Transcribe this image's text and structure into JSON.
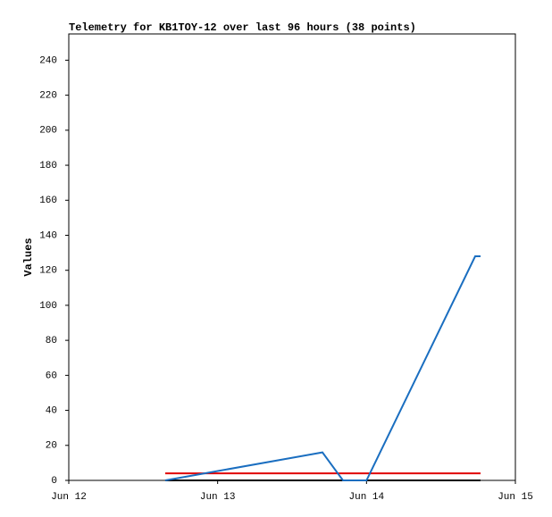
{
  "chart_data": {
    "type": "line",
    "title": "Telemetry for KB1TOY-12 over last 96 hours (38 points)",
    "ylabel": "Values",
    "xlim": [
      0,
      3
    ],
    "xticks": [
      {
        "value": 0,
        "label": "Jun 12"
      },
      {
        "value": 1,
        "label": "Jun 13"
      },
      {
        "value": 2,
        "label": "Jun 14"
      },
      {
        "value": 3,
        "label": "Jun 15"
      }
    ],
    "ylim": [
      0,
      255
    ],
    "yticks": [
      0,
      20,
      40,
      60,
      80,
      100,
      120,
      140,
      160,
      180,
      200,
      220,
      240
    ],
    "series": [
      {
        "color": "#000000",
        "x": [
          0.648,
          2.766
        ],
        "values": [
          0,
          0
        ]
      },
      {
        "color": "#e00000",
        "x": [
          0.648,
          2.766
        ],
        "values": [
          4,
          4
        ]
      },
      {
        "color": "#1a6ec0",
        "x": [
          0.648,
          1.704,
          1.842,
          2.0,
          2.73,
          2.766
        ],
        "values": [
          0,
          16,
          0,
          0,
          128,
          128
        ]
      }
    ]
  }
}
